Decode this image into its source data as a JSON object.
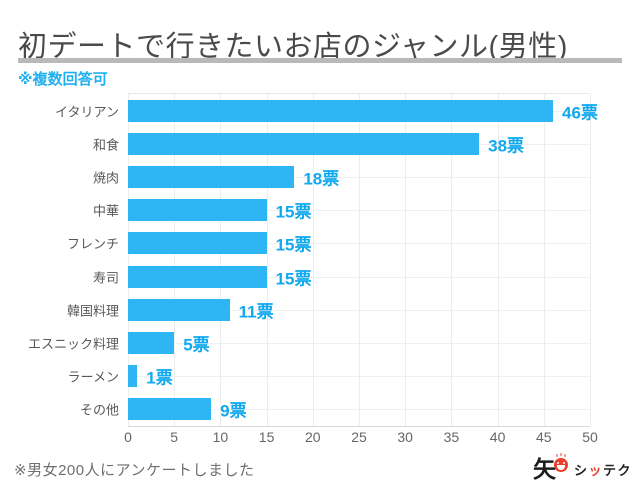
{
  "page": {
    "title": "初デートで行きたいお店のジャンル(男性)",
    "note": "※複数回答可",
    "footer": "※男女200人にアンケートしました"
  },
  "logo": {
    "kanji": "矢",
    "face_icon": "smiley-face",
    "brand": "シッテク",
    "brand_t1": "シ",
    "brand_t2": "ッ",
    "brand_t3": "テク",
    "red": "#e8402c"
  },
  "colors": {
    "bar": "#2eb5f4",
    "value_label": "#10a8ee",
    "note": "#1fb0f2",
    "title": "#4a4a4a",
    "grid": "#ededed"
  },
  "chart_data": {
    "type": "bar",
    "orientation": "horizontal",
    "title": "初デートで行きたいお店のジャンル(男性)",
    "subtitle": "※複数回答可",
    "categories": [
      "イタリアン",
      "和食",
      "焼肉",
      "中華",
      "フレンチ",
      "寿司",
      "韓国料理",
      "エスニック料理",
      "ラーメン",
      "その他"
    ],
    "values": [
      46,
      38,
      18,
      15,
      15,
      15,
      11,
      5,
      1,
      9
    ],
    "value_suffix": "票",
    "value_labels": [
      "46票",
      "38票",
      "18票",
      "15票",
      "15票",
      "15票",
      "11票",
      "5票",
      "1票",
      "9票"
    ],
    "xlabel": "",
    "ylabel": "",
    "xlim": [
      0,
      50
    ],
    "x_ticks": [
      0,
      5,
      10,
      15,
      20,
      25,
      30,
      35,
      40,
      45,
      50
    ],
    "grid": true,
    "legend": false,
    "footnote": "※男女200人にアンケートしました"
  }
}
